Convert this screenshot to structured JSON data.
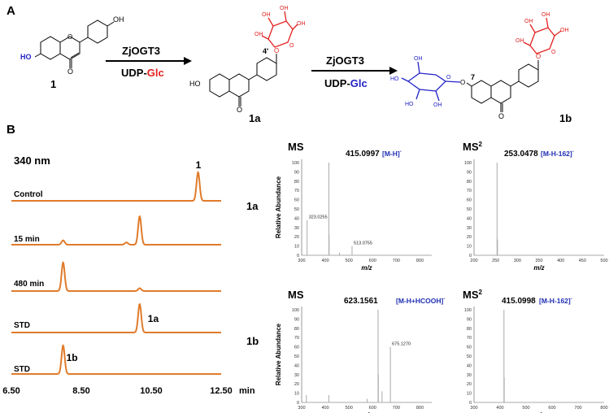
{
  "panels": {
    "a": "A",
    "b": "B"
  },
  "colors": {
    "trace": "#e07b2b",
    "glc_aglycone": "#e32020",
    "glc_7": "#2323c8",
    "ms_bar": "#aaaaaa"
  },
  "scheme": {
    "enzyme1": "ZjOGT3",
    "donor1_prefix": "UDP-",
    "donor1_sugar": "Glc",
    "enzyme2": "ZjOGT3",
    "donor2_prefix": "UDP-",
    "donor2_sugar": "Glc",
    "compounds": [
      {
        "id": "1",
        "label": "1"
      },
      {
        "id": "1a",
        "label": "1a",
        "position_label": "4'"
      },
      {
        "id": "1b",
        "label": "1b",
        "position_label": "7"
      }
    ],
    "atoms": {
      "HO": "HO",
      "OH": "OH",
      "O": "O"
    }
  },
  "hplc": {
    "wavelength": "340 nm",
    "peak_label_1": "1",
    "peak_label_1a": "1a",
    "peak_label_1b": "1b",
    "traces": [
      {
        "label": "Control",
        "peaks": [
          {
            "rt": 11.84,
            "height": 1.0
          }
        ]
      },
      {
        "label": "15 min",
        "peaks": [
          {
            "rt": 7.98,
            "height": 0.15
          },
          {
            "rt": 9.79,
            "height": 0.08
          },
          {
            "rt": 10.17,
            "height": 1.0
          }
        ]
      },
      {
        "label": "480 min",
        "peaks": [
          {
            "rt": 7.98,
            "height": 1.0
          },
          {
            "rt": 10.17,
            "height": 0.1
          }
        ]
      },
      {
        "label": "STD",
        "peaks": [
          {
            "rt": 10.17,
            "height": 1.0
          }
        ]
      },
      {
        "label": "STD",
        "peaks": [
          {
            "rt": 7.98,
            "height": 1.0
          }
        ]
      }
    ],
    "x_ticks": [
      "6.50",
      "8.50",
      "10.50",
      "12.50"
    ],
    "x_unit": "min",
    "x_range": [
      6.5,
      12.5
    ]
  },
  "ms": {
    "row_labels": [
      "1a",
      "1b"
    ],
    "y_axis_label": "Relative Abundance",
    "x_axis_label": "m/z",
    "y_ticks": [
      "0",
      "10",
      "20",
      "30",
      "40",
      "50",
      "60",
      "70",
      "80",
      "90",
      "100"
    ],
    "spectra": [
      {
        "title": "MS",
        "superscript": "",
        "ion_mz": "415.0997",
        "ion_label": "[M-H]",
        "ion_sup": "-",
        "x_ticks": [
          "300",
          "400",
          "500",
          "600",
          "700",
          "800"
        ],
        "x_range": [
          300,
          850
        ],
        "peaks": [
          {
            "mz": 323.0255,
            "rel": 38,
            "label": "323.0255"
          },
          {
            "mz": 415.0997,
            "rel": 100
          },
          {
            "mz": 416.1,
            "rel": 22
          },
          {
            "mz": 460,
            "rel": 3
          },
          {
            "mz": 513.0755,
            "rel": 10,
            "label": "513.0755"
          }
        ]
      },
      {
        "title": "MS",
        "superscript": "2",
        "ion_mz": "253.0478",
        "ion_label": "[M-H-162]",
        "ion_sup": "-",
        "x_ticks": [
          "200",
          "250",
          "300",
          "350",
          "400",
          "450",
          "500"
        ],
        "x_range": [
          200,
          500
        ],
        "peaks": [
          {
            "mz": 253.0478,
            "rel": 100
          },
          {
            "mz": 254.05,
            "rel": 17
          }
        ]
      },
      {
        "title": "MS",
        "superscript": "",
        "ion_mz": "623.1561",
        "ion_label": "[M-H+HCOOH]",
        "ion_sup": "-",
        "x_ticks": [
          "300",
          "400",
          "500",
          "600",
          "700",
          "800"
        ],
        "x_range": [
          300,
          850
        ],
        "peaks": [
          {
            "mz": 320,
            "rel": 8
          },
          {
            "mz": 415,
            "rel": 8
          },
          {
            "mz": 577,
            "rel": 4
          },
          {
            "mz": 623.1561,
            "rel": 100
          },
          {
            "mz": 624.2,
            "rel": 30
          },
          {
            "mz": 640,
            "rel": 12
          },
          {
            "mz": 675.127,
            "rel": 60,
            "label": "675.1270"
          }
        ]
      },
      {
        "title": "MS",
        "superscript": "2",
        "ion_mz": "415.0998",
        "ion_label": "[M-H-162]",
        "ion_sup": "-",
        "x_ticks": [
          "300",
          "400",
          "500",
          "600",
          "700",
          "800"
        ],
        "x_range": [
          300,
          800
        ],
        "peaks": [
          {
            "mz": 415.0998,
            "rel": 100
          },
          {
            "mz": 416.1,
            "rel": 27
          }
        ]
      }
    ]
  }
}
